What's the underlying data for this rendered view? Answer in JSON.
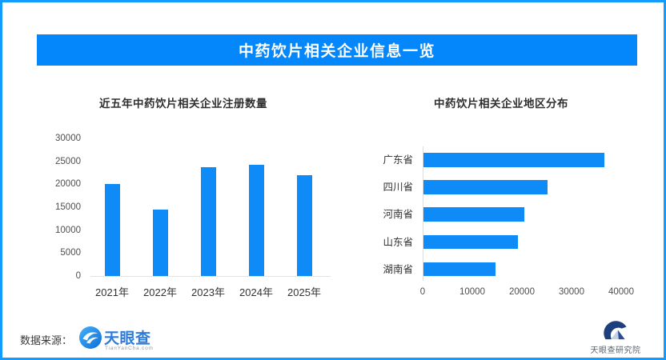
{
  "banner": {
    "title": "中药饮片相关企业信息一览",
    "bg_color": "#0487fb",
    "text_color": "#ffffff"
  },
  "accent_colors": {
    "bar_blue": "#0e8bf7",
    "border_blue": "#149bff"
  },
  "chart_data": [
    {
      "type": "bar",
      "title": "近五年中药饮片相关企业注册数量",
      "categories": [
        "2021年",
        "2022年",
        "2023年",
        "2024年",
        "2025年"
      ],
      "values": [
        20100,
        14400,
        23700,
        24300,
        21900
      ],
      "ylim": [
        0,
        30000
      ],
      "yticks": [
        0,
        5000,
        10000,
        15000,
        20000,
        25000,
        30000
      ],
      "grid": false,
      "legend": "none",
      "bar_color": "#0e8bf7"
    },
    {
      "type": "bar-horizontal",
      "title": "中药饮片相关企业地区分布",
      "categories": [
        "广东省",
        "四川省",
        "河南省",
        "山东省",
        "湖南省"
      ],
      "values": [
        36500,
        25000,
        20300,
        19000,
        14500
      ],
      "xlim": [
        0,
        40000
      ],
      "xticks": [
        0,
        10000,
        20000,
        30000,
        40000
      ],
      "grid": false,
      "legend": "none",
      "bar_color": "#0e8bf7"
    }
  ],
  "footer": {
    "source_label": "数据来源：",
    "brand_name": "天眼查",
    "brand_domain": "TianYanCha.com",
    "institute_name": "天眼查研究院"
  }
}
